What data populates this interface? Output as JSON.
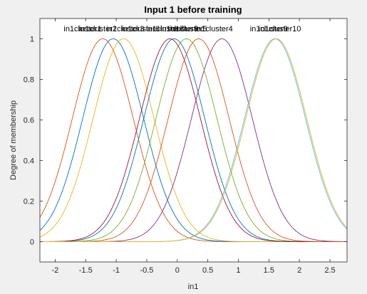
{
  "figure": {
    "background": "#f0f0f0",
    "axes_background": "#ffffff",
    "axes_color": "#262626"
  },
  "chart_data": {
    "type": "line",
    "title": "Input 1 before training",
    "xlabel": "in1",
    "ylabel": "Degree of membership",
    "xlim": [
      -2.25,
      2.78
    ],
    "ylim": [
      -0.1,
      1.1
    ],
    "x_ticks": [
      -2,
      -1.5,
      -1,
      -0.5,
      0,
      0.5,
      1,
      1.5,
      2,
      2.5
    ],
    "x_tick_labels": [
      "-2",
      "-1.5",
      "-1",
      "-0.5",
      "0",
      "0.5",
      "1",
      "1.5",
      "2",
      "2.5"
    ],
    "y_ticks": [
      0,
      0.2,
      0.4,
      0.6,
      0.8,
      1
    ],
    "y_tick_labels": [
      "0",
      "0.2",
      "0.4",
      "0.6",
      "0.8",
      "1"
    ],
    "grid": false,
    "legend": "none",
    "series": [
      {
        "name": "in1cluster1",
        "type": "gaussmf",
        "sigma": 0.5,
        "center": -1.22,
        "color": "#D95319"
      },
      {
        "name": "in1cluster2",
        "type": "gaussmf",
        "sigma": 0.5,
        "center": -1.05,
        "color": "#0072BD"
      },
      {
        "name": "in1cluster3",
        "type": "gaussmf",
        "sigma": 0.5,
        "center": -0.88,
        "color": "#EDB120"
      },
      {
        "name": "in1cluster4",
        "type": "gaussmf",
        "sigma": 0.5,
        "center": 0.73,
        "color": "#7E2F8E"
      },
      {
        "name": "in1cluster5",
        "type": "gaussmf",
        "sigma": 0.5,
        "center": 0.15,
        "color": "#77AC30"
      },
      {
        "name": "in1cluster6",
        "type": "gaussmf",
        "sigma": 0.5,
        "center": -0.05,
        "color": "#0072BD"
      },
      {
        "name": "in1cluster7",
        "type": "gaussmf",
        "sigma": 0.5,
        "center": -0.12,
        "color": "#A2142F"
      },
      {
        "name": "in1cluster8",
        "type": "gaussmf",
        "sigma": 0.5,
        "center": 0.35,
        "color": "#D95319"
      },
      {
        "name": "in1cluster9",
        "type": "gaussmf",
        "sigma": 0.5,
        "center": 1.6,
        "color": "#4DBEEE"
      },
      {
        "name": "in1cluster10",
        "type": "gaussmf",
        "sigma": 0.5,
        "center": 1.62,
        "color": "#EDB120"
      }
    ],
    "curve_labels": [
      {
        "text": "in1cluster1",
        "x": -1.55
      },
      {
        "text": "in1cluster2",
        "x": -1.3
      },
      {
        "text": "in1cluster3",
        "x": -0.85
      },
      {
        "text": "in1cluster6",
        "x": -0.6
      },
      {
        "text": "in1cluster7",
        "x": -0.2
      },
      {
        "text": "in1cluster8",
        "x": 0.03
      },
      {
        "text": "in1cluster5",
        "x": 0.18
      },
      {
        "text": "in1cluster4",
        "x": 0.6
      },
      {
        "text": "in1cluster9",
        "x": 1.5
      },
      {
        "text": "in1cluster10",
        "x": 1.68
      }
    ]
  }
}
